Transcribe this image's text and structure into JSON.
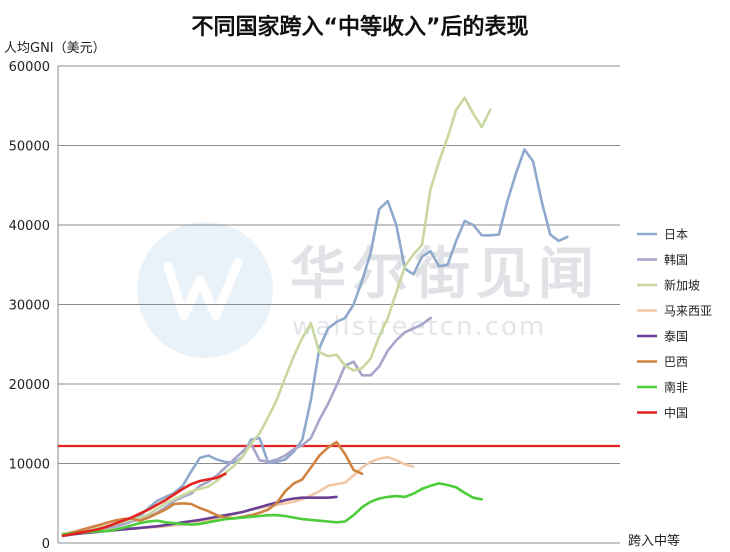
{
  "chart_data": {
    "type": "line",
    "title": "不同国家跨入“中等收入”后的表现",
    "ylabel": "人均GNI（美元）",
    "xlabel": "跨入中等",
    "ylim": [
      0,
      60000
    ],
    "yticks": [
      "0",
      "10000",
      "20000",
      "30000",
      "40000",
      "50000",
      "60000"
    ],
    "grid": true,
    "legend_position": "right",
    "x_count": 65,
    "reference_line": {
      "value": 12200,
      "color": "#e32222"
    },
    "series": [
      {
        "name": "日本",
        "color": "#8fa9cc",
        "values": [
          900,
          1050,
          1200,
          1400,
          1600,
          1850,
          2100,
          2500,
          2900,
          3400,
          4400,
          5300,
          5800,
          6300,
          7200,
          9000,
          10700,
          11000,
          10500,
          10200,
          10100,
          10800,
          13000,
          13200,
          10100,
          10200,
          10500,
          11500,
          13000,
          18000,
          24500,
          27000,
          27800,
          28300,
          30000,
          33000,
          36500,
          42000,
          43000,
          40000,
          34500,
          33800,
          36000,
          36700,
          34800,
          35000,
          38000,
          40500,
          40000,
          38700,
          38700,
          38800,
          43000,
          46500,
          49500,
          48000,
          43000,
          38800,
          38000,
          38500
        ]
      },
      {
        "name": "韩国",
        "color": "#a7a5c9",
        "values": [
          1000,
          1150,
          1300,
          1450,
          1600,
          1800,
          2000,
          2300,
          2700,
          3000,
          3300,
          3800,
          4500,
          5300,
          5800,
          6200,
          7200,
          7700,
          8500,
          9500,
          10500,
          11500,
          12500,
          10400,
          10200,
          10500,
          11000,
          11800,
          12300,
          13200,
          15500,
          17500,
          19800,
          22300,
          22800,
          21100,
          21100,
          22200,
          24200,
          25500,
          26500,
          27000,
          27500,
          28300
        ]
      },
      {
        "name": "新加坡",
        "color": "#c8d89e",
        "values": [
          1200,
          1350,
          1500,
          1700,
          1900,
          2100,
          2350,
          2650,
          2900,
          3200,
          3600,
          4300,
          5000,
          5500,
          6000,
          6500,
          6800,
          7100,
          7800,
          8800,
          9700,
          10800,
          12500,
          13800,
          15800,
          18000,
          20800,
          23500,
          25800,
          27600,
          24000,
          23500,
          23700,
          22300,
          21700,
          22000,
          23200,
          26000,
          28300,
          31500,
          34800,
          36300,
          37500,
          44500,
          48000,
          51000,
          54500,
          56000,
          54000,
          52300,
          54500
        ]
      },
      {
        "name": "马来西亚",
        "color": "#f1c8a6",
        "values": [
          1200,
          1300,
          1400,
          1500,
          1550,
          1600,
          1700,
          1750,
          1800,
          1900,
          1950,
          2000,
          2100,
          2200,
          2300,
          2400,
          2600,
          2800,
          3000,
          3300,
          3600,
          3900,
          4200,
          4400,
          4600,
          4800,
          5000,
          5200,
          5500,
          6000,
          6500,
          7200,
          7400,
          7600,
          8500,
          9500,
          10200,
          10600,
          10800,
          10400,
          9900,
          9600
        ]
      },
      {
        "name": "泰国",
        "color": "#6a3f95",
        "values": [
          1000,
          1100,
          1200,
          1300,
          1400,
          1500,
          1600,
          1700,
          1800,
          1900,
          2000,
          2100,
          2250,
          2400,
          2600,
          2750,
          2900,
          3100,
          3300,
          3500,
          3700,
          3900,
          4200,
          4500,
          4800,
          5100,
          5400,
          5600,
          5700,
          5700,
          5700,
          5700,
          5800
        ]
      },
      {
        "name": "巴西",
        "color": "#d08240",
        "values": [
          1000,
          1300,
          1600,
          1900,
          2200,
          2500,
          2800,
          3000,
          3100,
          2800,
          3200,
          3700,
          4200,
          4900,
          5000,
          4900,
          4400,
          4000,
          3500,
          3200,
          3100,
          3300,
          3500,
          3800,
          4200,
          5000,
          6500,
          7500,
          8000,
          9500,
          11000,
          12000,
          12700,
          11200,
          9200,
          8700
        ]
      },
      {
        "name": "南非",
        "color": "#4dcd3a",
        "values": [
          1100,
          1200,
          1300,
          1400,
          1450,
          1500,
          1650,
          1900,
          2200,
          2500,
          2700,
          2800,
          2600,
          2500,
          2400,
          2300,
          2400,
          2600,
          2800,
          3000,
          3100,
          3200,
          3300,
          3400,
          3500,
          3500,
          3400,
          3200,
          3000,
          2900,
          2800,
          2700,
          2600,
          2700,
          3500,
          4500,
          5200,
          5600,
          5800,
          5900,
          5800,
          6200,
          6800,
          7200,
          7500,
          7300,
          7000,
          6300,
          5700,
          5500
        ]
      },
      {
        "name": "中国",
        "color": "#e32222",
        "values": [
          900,
          1100,
          1300,
          1500,
          1700,
          2000,
          2400,
          2800,
          3200,
          3700,
          4200,
          4800,
          5400,
          6100,
          6800,
          7400,
          7800,
          8000,
          8200,
          8700
        ]
      }
    ]
  }
}
